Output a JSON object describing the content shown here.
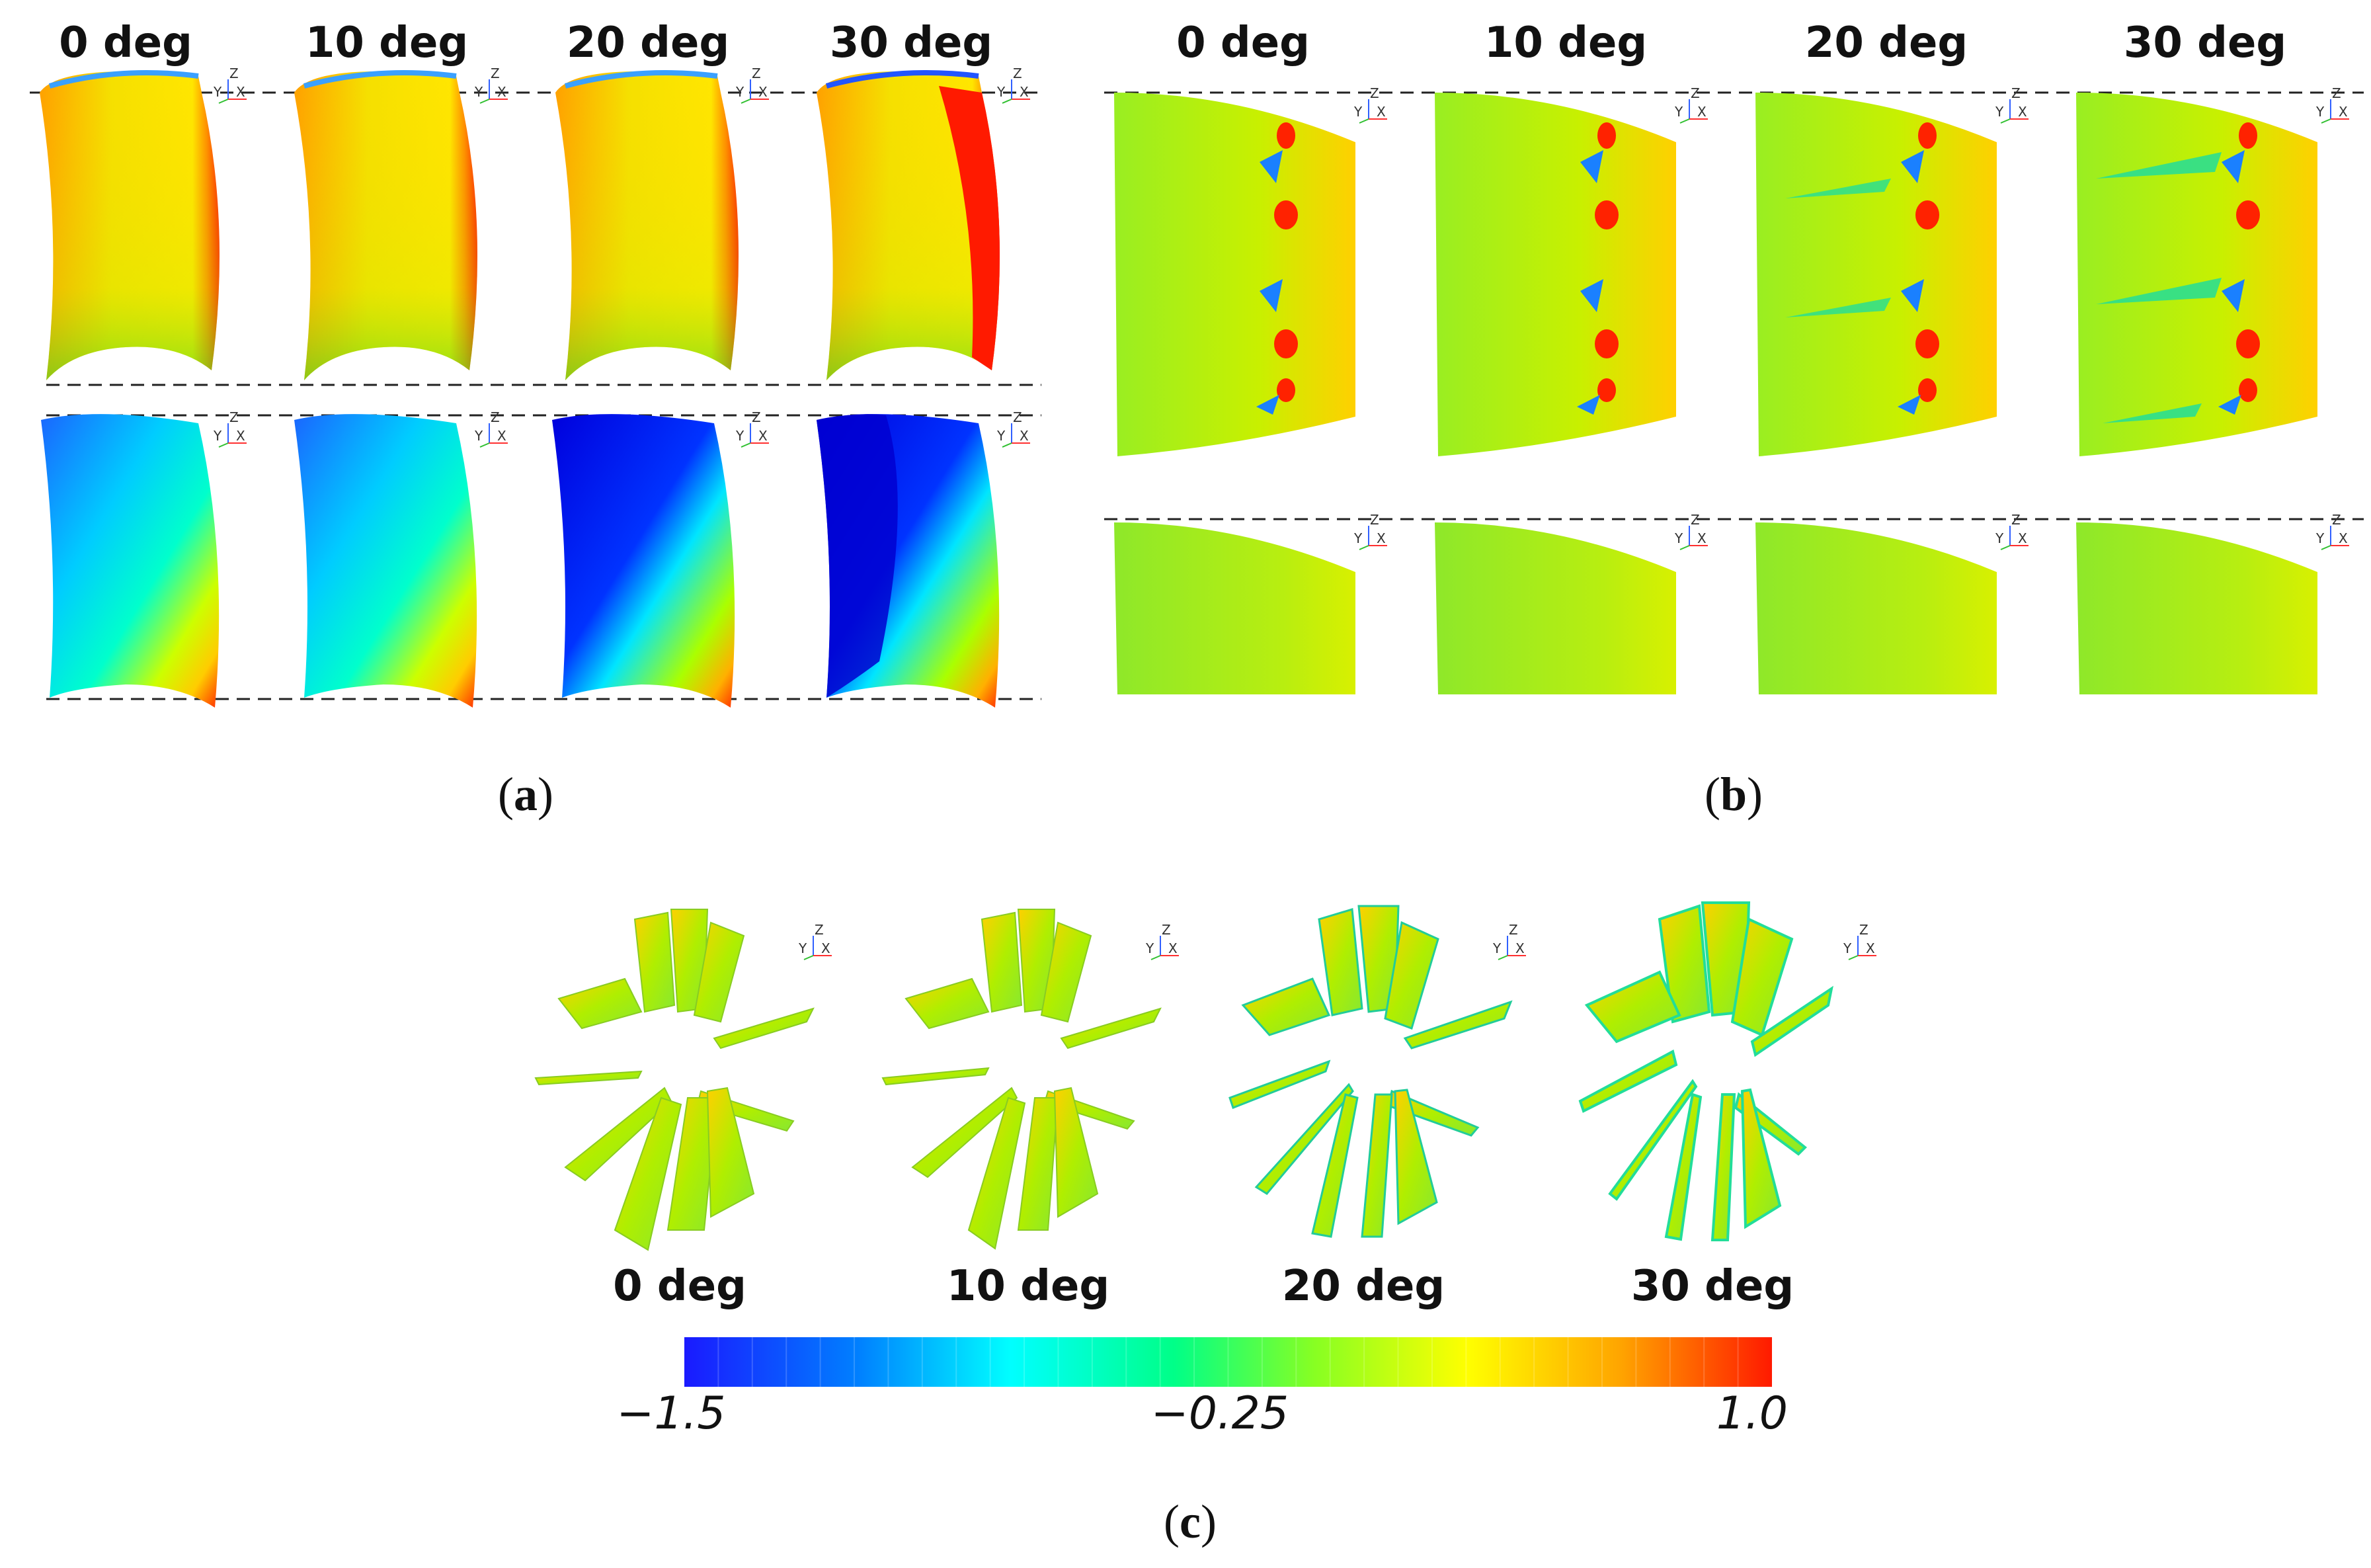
{
  "panels": {
    "a": {
      "caption_open": "(",
      "caption_letter": "a",
      "caption_close": ")",
      "headers": [
        "0 deg",
        "10 deg",
        "20 deg",
        "30 deg"
      ]
    },
    "b": {
      "caption_open": "(",
      "caption_letter": "b",
      "caption_close": ")",
      "headers": [
        "0 deg",
        "10 deg",
        "20 deg",
        "30 deg"
      ]
    },
    "c": {
      "caption_open": "(",
      "caption_letter": "c",
      "caption_close": ")",
      "headers": [
        "0 deg",
        "10 deg",
        "20 deg",
        "30 deg"
      ]
    }
  },
  "colorbar": {
    "min_label": "−1.5",
    "mid_label": "−0.25",
    "max_label": "1.0",
    "min": -1.5,
    "mid": -0.25,
    "max": 1.0,
    "colors": [
      "#1a1aff",
      "#00c8ff",
      "#00ffcc",
      "#66ff33",
      "#ccff00",
      "#ffff00",
      "#ffaa00",
      "#ff2200"
    ]
  },
  "axis_triad": {
    "z": "Z",
    "y": "Y",
    "x": "X"
  }
}
